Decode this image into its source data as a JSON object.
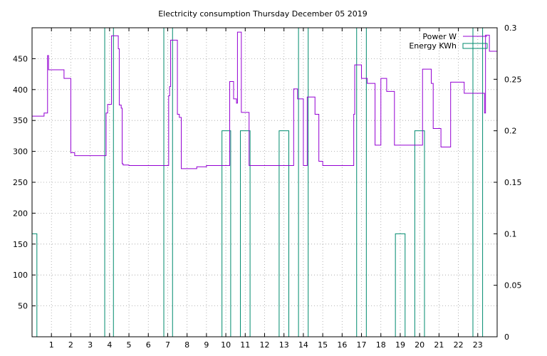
{
  "chart_data": {
    "type": "line",
    "title": "Electricity consumption Thursday December 05 2019",
    "x_range": [
      0,
      24
    ],
    "x_ticks": [
      1,
      2,
      3,
      4,
      5,
      6,
      7,
      8,
      9,
      10,
      11,
      12,
      13,
      14,
      15,
      16,
      17,
      18,
      19,
      20,
      21,
      22,
      23
    ],
    "y_left_range": [
      0,
      500
    ],
    "y_left_ticks": [
      50,
      100,
      150,
      200,
      250,
      300,
      350,
      400,
      450
    ],
    "y_right_range": [
      0,
      0.3
    ],
    "y_right_ticks": [
      "0",
      "0.05",
      "0.1",
      "0.15",
      "0.2",
      "0.25",
      "0.3"
    ],
    "grid": true,
    "legend_position": "top-right",
    "series": [
      {
        "name": "Power W",
        "color": "#9400d3",
        "axis": "left",
        "style": "steps",
        "x": [
          0,
          0.6,
          0.62,
          0.8,
          0.85,
          1.6,
          1.65,
          2.0,
          2.2,
          3.8,
          3.82,
          3.9,
          3.95,
          4.1,
          4.15,
          4.45,
          4.5,
          4.6,
          4.65,
          4.7,
          5.0,
          6.0,
          7.0,
          7.05,
          7.1,
          7.15,
          7.2,
          7.5,
          7.6,
          7.7,
          7.8,
          8.5,
          9.0,
          9.5,
          10.1,
          10.2,
          10.4,
          10.55,
          10.6,
          10.8,
          11.0,
          11.2,
          13.0,
          13.2,
          13.25,
          13.5,
          13.7,
          13.75,
          13.9,
          14.0,
          14.2,
          14.5,
          14.6,
          14.8,
          15.0,
          16.0,
          16.55,
          16.6,
          16.65,
          17.0,
          17.2,
          17.3,
          17.7,
          17.8,
          18.0,
          18.3,
          18.7,
          19.5,
          20.0,
          20.1,
          20.15,
          20.5,
          20.6,
          20.7,
          21.0,
          21.1,
          21.5,
          21.55,
          21.6,
          22.0,
          22.3,
          23.0,
          23.3,
          23.35,
          23.4,
          23.6,
          24.0
        ],
        "y": [
          357,
          357,
          362,
          455,
          432,
          432,
          418,
          298,
          293,
          293,
          362,
          376,
          376,
          487,
          487,
          466,
          375,
          370,
          280,
          278,
          277,
          277,
          277,
          390,
          405,
          480,
          480,
          360,
          355,
          272,
          272,
          275,
          277,
          277,
          277,
          413,
          385,
          378,
          493,
          363,
          363,
          277,
          277,
          277,
          277,
          401,
          385,
          385,
          385,
          277,
          388,
          388,
          360,
          284,
          277,
          277,
          277,
          360,
          440,
          418,
          418,
          410,
          310,
          310,
          418,
          397,
          310,
          310,
          310,
          310,
          433,
          433,
          410,
          337,
          337,
          307,
          307,
          307,
          412,
          412,
          394,
          394,
          394,
          362,
          488,
          462,
          462
        ]
      },
      {
        "name": "Energy KWh",
        "color": "#008b6e",
        "axis": "right",
        "style": "boxes",
        "bars": [
          {
            "x0": 0.0,
            "x1": 0.25,
            "y": 0.1
          },
          {
            "x0": 3.75,
            "x1": 4.2,
            "y": 0.3
          },
          {
            "x0": 6.8,
            "x1": 7.25,
            "y": 0.3
          },
          {
            "x0": 9.8,
            "x1": 10.25,
            "y": 0.2
          },
          {
            "x0": 10.75,
            "x1": 11.25,
            "y": 0.2
          },
          {
            "x0": 12.75,
            "x1": 13.25,
            "y": 0.2
          },
          {
            "x0": 13.75,
            "x1": 14.25,
            "y": 0.3
          },
          {
            "x0": 16.75,
            "x1": 17.25,
            "y": 0.3
          },
          {
            "x0": 18.75,
            "x1": 19.25,
            "y": 0.1
          },
          {
            "x0": 19.75,
            "x1": 20.25,
            "y": 0.2
          },
          {
            "x0": 22.75,
            "x1": 23.25,
            "y": 0.3
          }
        ]
      }
    ]
  }
}
